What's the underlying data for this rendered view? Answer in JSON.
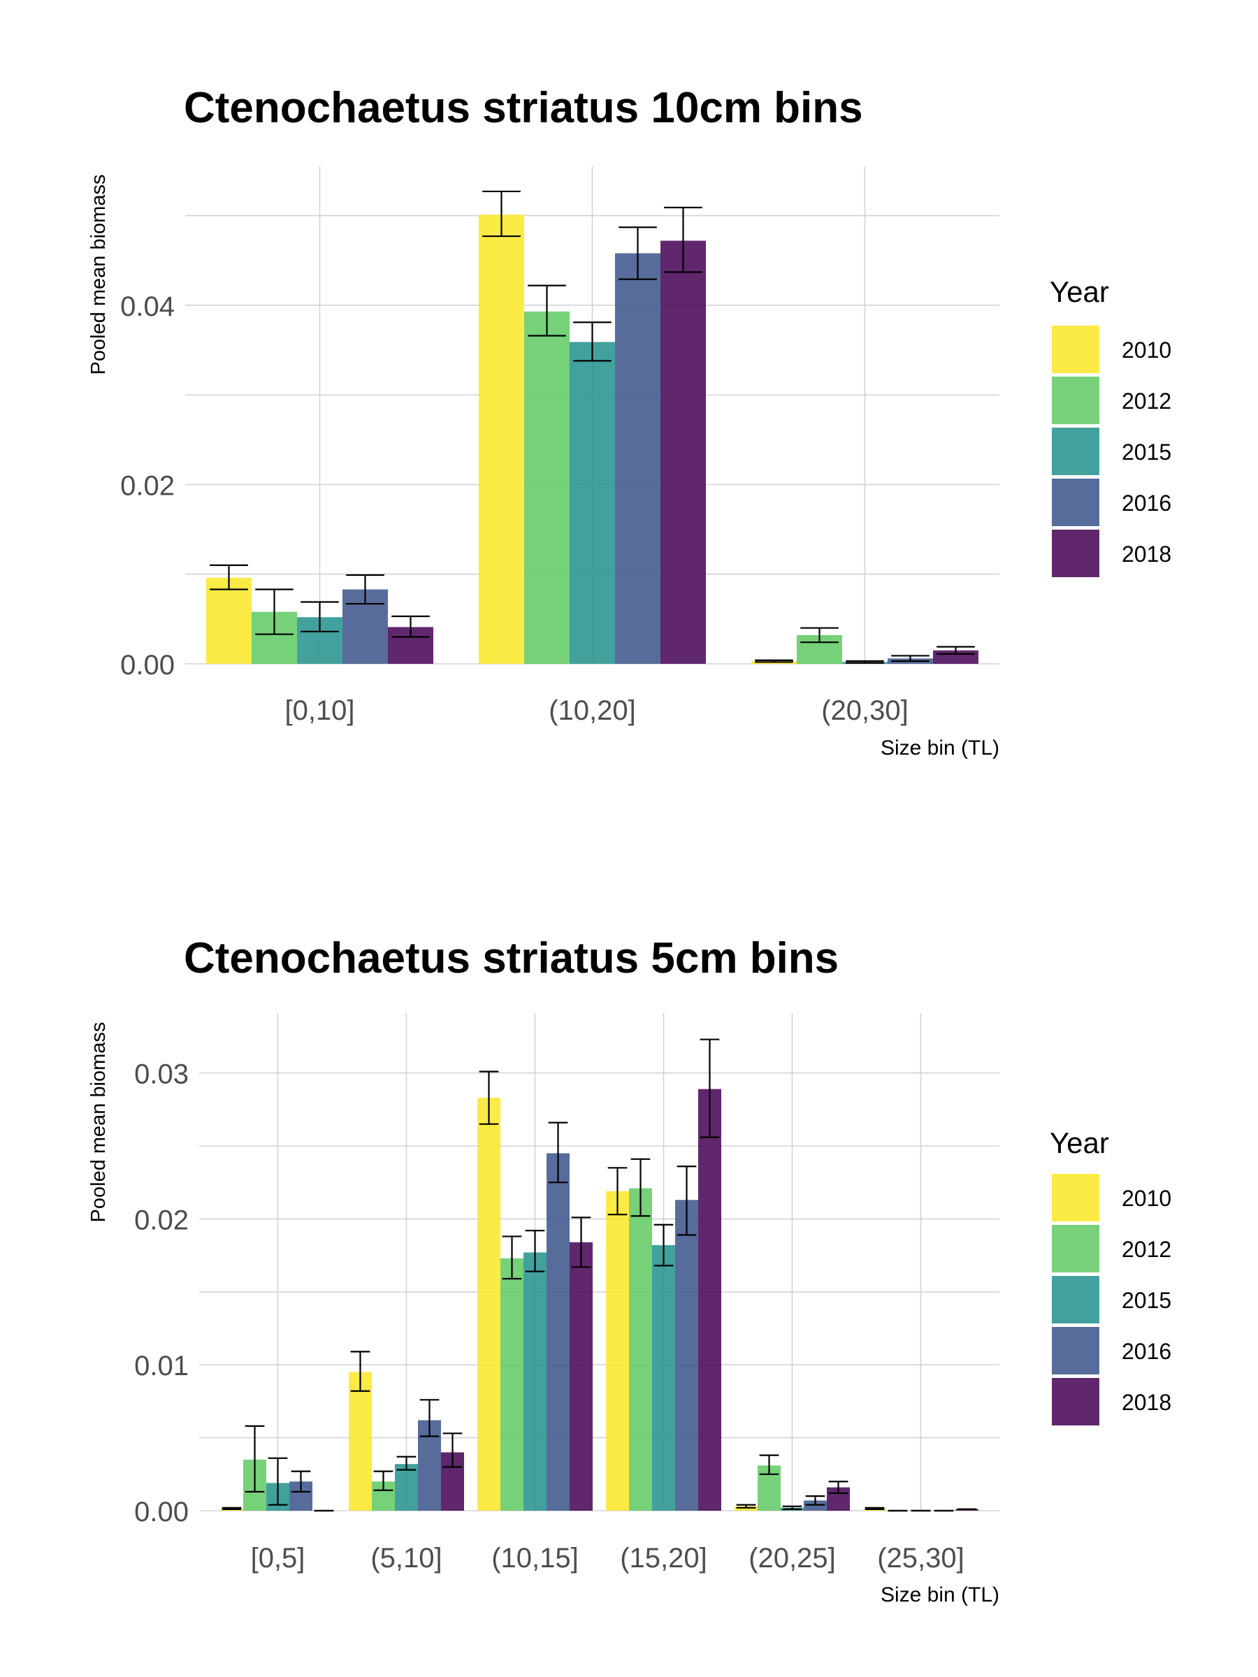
{
  "colors": {
    "2010": "#FDE725",
    "2012": "#5EC962",
    "2015": "#21918C",
    "2016": "#3B528B",
    "2018": "#440154",
    "grid": "#d3d3d3",
    "errorbar": "#000000"
  },
  "chart_data": [
    {
      "type": "bar",
      "title": "Ctenochaetus striatus 10cm bins",
      "xlabel": "Size bin (TL)",
      "ylabel": "Pooled mean biomass",
      "ylim": [
        0,
        0.0555
      ],
      "yticks": [
        "0.00",
        "0.02",
        "0.04"
      ],
      "ytick_values": [
        0,
        0.02,
        0.04
      ],
      "grid": true,
      "legend": {
        "title": "Year",
        "position": "right",
        "entries": [
          "2010",
          "2012",
          "2015",
          "2016",
          "2018"
        ]
      },
      "categories": [
        "[0,10]",
        "(10,20]",
        "(20,30]"
      ],
      "series": [
        {
          "name": "2010",
          "values": [
            0.0096,
            0.0501,
            0.0003
          ],
          "err_low": [
            0.0083,
            0.0477,
            0.0002
          ],
          "err_high": [
            0.011,
            0.0527,
            0.0004
          ]
        },
        {
          "name": "2012",
          "values": [
            0.0058,
            0.0393,
            0.0032
          ],
          "err_low": [
            0.0033,
            0.0366,
            0.0024
          ],
          "err_high": [
            0.0083,
            0.0422,
            0.004
          ]
        },
        {
          "name": "2015",
          "values": [
            0.0052,
            0.0359,
            0.0002
          ],
          "err_low": [
            0.0036,
            0.0338,
            0.0001
          ],
          "err_high": [
            0.0069,
            0.0381,
            0.0003
          ]
        },
        {
          "name": "2016",
          "values": [
            0.0083,
            0.0458,
            0.0006
          ],
          "err_low": [
            0.0067,
            0.0429,
            0.0003
          ],
          "err_high": [
            0.0099,
            0.0487,
            0.0009
          ]
        },
        {
          "name": "2018",
          "values": [
            0.0041,
            0.0472,
            0.0015
          ],
          "err_low": [
            0.003,
            0.0437,
            0.0011
          ],
          "err_high": [
            0.0053,
            0.0509,
            0.0019
          ]
        }
      ]
    },
    {
      "type": "bar",
      "title": "Ctenochaetus striatus 5cm bins",
      "xlabel": "Size bin (TL)",
      "ylabel": "Pooled mean biomass",
      "ylim": [
        0,
        0.0341
      ],
      "yticks": [
        "0.00",
        "0.01",
        "0.02",
        "0.03"
      ],
      "ytick_values": [
        0,
        0.01,
        0.02,
        0.03
      ],
      "grid": true,
      "legend": {
        "title": "Year",
        "position": "right",
        "entries": [
          "2010",
          "2012",
          "2015",
          "2016",
          "2018"
        ]
      },
      "categories": [
        "[0,5]",
        "(5,10]",
        "(10,15]",
        "(15,20]",
        "(20,25]",
        "(25,30]"
      ],
      "series": [
        {
          "name": "2010",
          "values": [
            0.0001,
            0.0095,
            0.0283,
            0.0219,
            0.0003,
            0.0001
          ],
          "err_low": [
            0.0001,
            0.0082,
            0.0265,
            0.0203,
            0.0002,
            0.0001
          ],
          "err_high": [
            0.0002,
            0.0109,
            0.0301,
            0.0235,
            0.0004,
            0.0002
          ]
        },
        {
          "name": "2012",
          "values": [
            0.0035,
            0.002,
            0.0173,
            0.0221,
            0.0031,
            0.0
          ],
          "err_low": [
            0.0013,
            0.0014,
            0.0159,
            0.0202,
            0.0025,
            0.0
          ],
          "err_high": [
            0.0058,
            0.0027,
            0.0188,
            0.0241,
            0.0038,
            0.0
          ]
        },
        {
          "name": "2015",
          "values": [
            0.0019,
            0.0032,
            0.0177,
            0.0182,
            0.0002,
            0.0
          ],
          "err_low": [
            0.0004,
            0.0028,
            0.0164,
            0.0168,
            0.0001,
            0.0
          ],
          "err_high": [
            0.0036,
            0.0037,
            0.0192,
            0.0196,
            0.0003,
            0.0
          ]
        },
        {
          "name": "2016",
          "values": [
            0.002,
            0.0062,
            0.0245,
            0.0213,
            0.0007,
            0.0
          ],
          "err_low": [
            0.0013,
            0.0051,
            0.0225,
            0.0189,
            0.0004,
            0.0
          ],
          "err_high": [
            0.0027,
            0.0076,
            0.0266,
            0.0236,
            0.001,
            0.0
          ]
        },
        {
          "name": "2018",
          "values": [
            0.0,
            0.004,
            0.0184,
            0.0289,
            0.0016,
            0.0001
          ],
          "err_low": [
            0.0,
            0.003,
            0.0167,
            0.0256,
            0.0012,
            0.0001
          ],
          "err_high": [
            0.0,
            0.0053,
            0.0201,
            0.0323,
            0.002,
            0.0001
          ]
        }
      ]
    }
  ]
}
